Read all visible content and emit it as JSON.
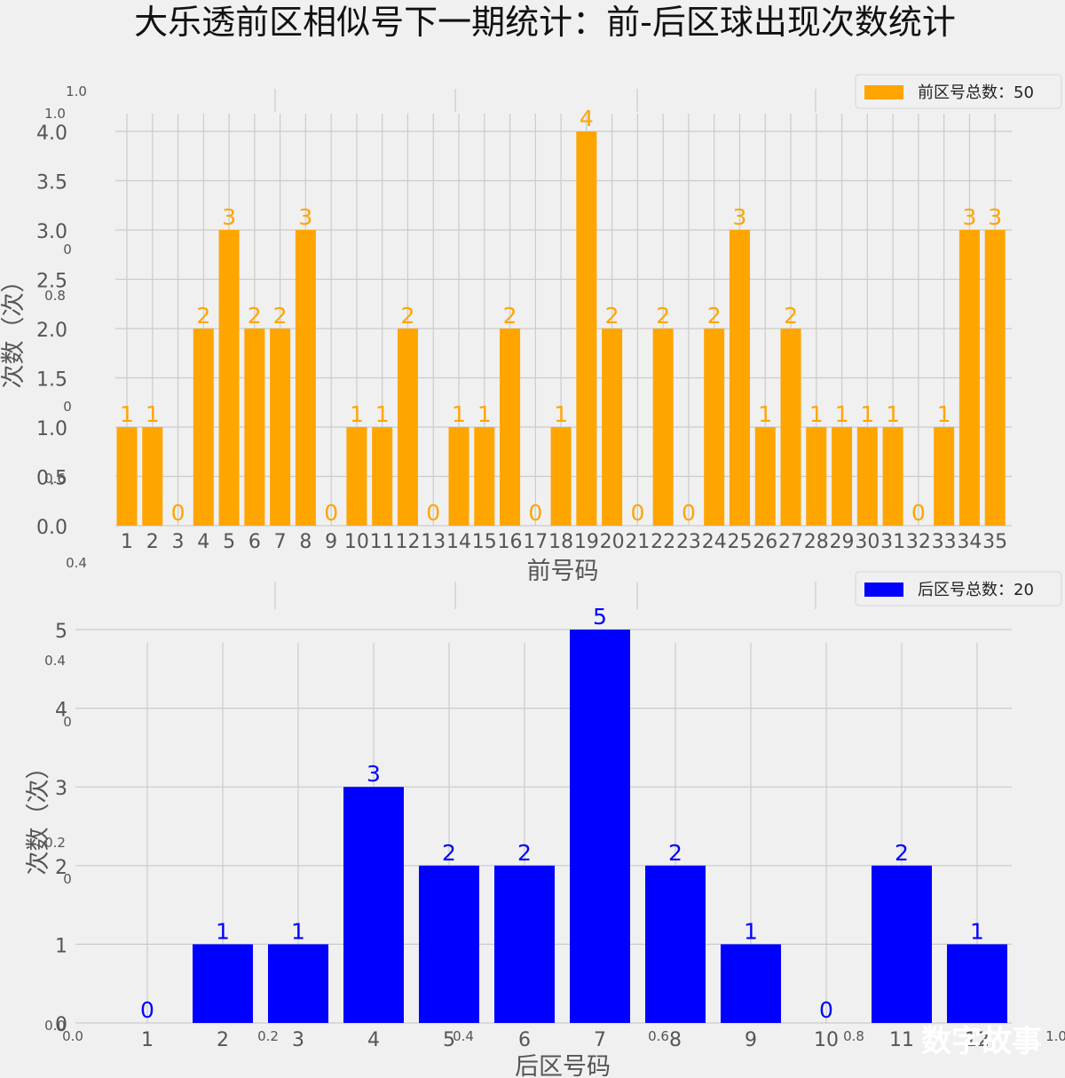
{
  "title": "大乐透前区相似号下一期统计：前-后区球出现次数统计",
  "watermark": "数字故事",
  "ghost_ticks": [
    "1.0",
    "1.0",
    "0",
    "0.8",
    "0",
    "0.6",
    "0.4",
    "0.4",
    "0",
    "0.2",
    "0",
    "0.0",
    "0.0",
    "0.2",
    "0.4",
    "0.6",
    "0.8",
    "1.0"
  ],
  "chart_data": [
    {
      "type": "bar",
      "id": "front",
      "color": "#ffa500",
      "categories": [
        "1",
        "2",
        "3",
        "4",
        "5",
        "6",
        "7",
        "8",
        "9",
        "10",
        "11",
        "12",
        "13",
        "14",
        "15",
        "16",
        "17",
        "18",
        "19",
        "20",
        "21",
        "22",
        "23",
        "24",
        "25",
        "26",
        "27",
        "28",
        "29",
        "30",
        "31",
        "32",
        "33",
        "34",
        "35"
      ],
      "values": [
        1,
        1,
        0,
        2,
        3,
        2,
        2,
        3,
        0,
        1,
        1,
        2,
        0,
        1,
        1,
        2,
        0,
        1,
        4,
        2,
        0,
        2,
        0,
        2,
        3,
        1,
        2,
        1,
        1,
        1,
        1,
        0,
        1,
        3,
        3
      ],
      "xlabel": "前号码",
      "ylabel": "次数（次）",
      "ylim": [
        0,
        4.2
      ],
      "yticks": [
        "0.0",
        "0.5",
        "1.0",
        "1.5",
        "2.0",
        "2.5",
        "3.0",
        "3.5",
        "4.0"
      ],
      "legend": "前区号总数：50",
      "legend_position": "top-right",
      "grid": true
    },
    {
      "type": "bar",
      "id": "back",
      "color": "#0000ff",
      "categories": [
        "1",
        "2",
        "3",
        "4",
        "5",
        "6",
        "7",
        "8",
        "9",
        "10",
        "11",
        "12"
      ],
      "values": [
        0,
        1,
        1,
        3,
        2,
        2,
        5,
        2,
        1,
        0,
        2,
        1
      ],
      "xlabel": "后区号码",
      "ylabel": "次数（次）",
      "ylim": [
        0,
        5
      ],
      "yticks": [
        "0",
        "1",
        "2",
        "3",
        "4",
        "5"
      ],
      "legend": "后区号总数：20",
      "legend_position": "top-right",
      "grid": true
    }
  ]
}
